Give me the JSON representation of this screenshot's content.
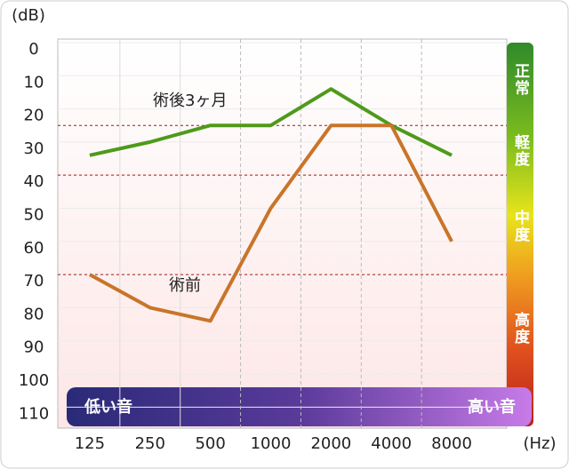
{
  "chart_data": {
    "type": "line",
    "y_label": "(dB)",
    "x_label": "(Hz)",
    "categories": [
      "125",
      "250",
      "500",
      "1000",
      "2000",
      "4000",
      "8000"
    ],
    "series": [
      {
        "name": "術後3ヶ月",
        "color": "#4e9a1a",
        "values": [
          34,
          30,
          25,
          25,
          14,
          25,
          34
        ]
      },
      {
        "name": "術前",
        "color": "#c8752a",
        "values": [
          70,
          80,
          84,
          50,
          25,
          25,
          60
        ]
      }
    ],
    "ylim": [
      -2,
      116
    ],
    "yticks": [
      0,
      10,
      20,
      30,
      40,
      50,
      60,
      70,
      80,
      90,
      100,
      110
    ],
    "reference_lines": [
      25,
      40,
      70
    ],
    "severity_bands": [
      "正常",
      "軽度",
      "中度",
      "高度"
    ],
    "pitch_low": "低い音",
    "pitch_high": "高い音",
    "grid": true
  }
}
